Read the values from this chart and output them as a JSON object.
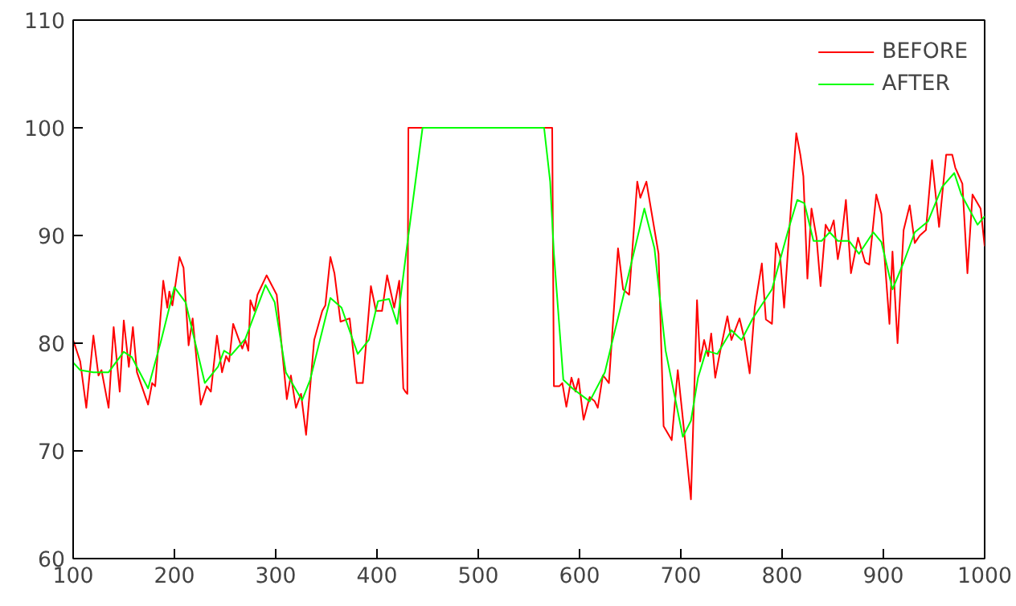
{
  "chart_data": {
    "type": "line",
    "xlim": [
      100,
      1000
    ],
    "ylim": [
      60,
      110
    ],
    "xticks": [
      100,
      200,
      300,
      400,
      500,
      600,
      700,
      800,
      900,
      1000
    ],
    "yticks": [
      60,
      70,
      80,
      90,
      100,
      110
    ],
    "grid": false,
    "legend": "top right",
    "marker": "none",
    "line_style": "solid",
    "series": [
      {
        "name": "BEFORE",
        "color": "#ff0000",
        "x": [
          100,
          107,
          113,
          120,
          125,
          128,
          135,
          140,
          146,
          150,
          155,
          159,
          163,
          174,
          178,
          181,
          189,
          193,
          195,
          198,
          205,
          209,
          214,
          218,
          226,
          232,
          236,
          242,
          247,
          251,
          254,
          258,
          263,
          267,
          270,
          273,
          275,
          279,
          282,
          291,
          301,
          311,
          315,
          320,
          325,
          330,
          338,
          346,
          349,
          354,
          358,
          364,
          373,
          380,
          386,
          394,
          399,
          405,
          410,
          417,
          422,
          426,
          428,
          430,
          431,
          573,
          574.7,
          580,
          583,
          587,
          592,
          596,
          599,
          604,
          610,
          615,
          618,
          623,
          625,
          629,
          638,
          643,
          649,
          657,
          660,
          666,
          678,
          683,
          691,
          697,
          702,
          710,
          716,
          719,
          723,
          727,
          730,
          734,
          739,
          746,
          750,
          758,
          763,
          768,
          773,
          780,
          784,
          790,
          794,
          798,
          802,
          807,
          814,
          818,
          821,
          825,
          829,
          834,
          838,
          843,
          847,
          851,
          855,
          859,
          863,
          868,
          875,
          882,
          886,
          893,
          898,
          906,
          909,
          914,
          920,
          926,
          931,
          936,
          942,
          948,
          955,
          962,
          968,
          971,
          978,
          983,
          988,
          996,
          1000
        ],
        "values": [
          80.3,
          78.3,
          74.0,
          80.7,
          77.0,
          77.5,
          74.0,
          81.5,
          75.5,
          82.1,
          77.8,
          81.5,
          77.3,
          74.3,
          76.3,
          76.0,
          85.8,
          83.3,
          84.8,
          83.5,
          88.0,
          87.0,
          79.8,
          82.3,
          74.3,
          76.0,
          75.5,
          80.7,
          77.3,
          78.8,
          78.3,
          81.8,
          80.5,
          79.5,
          80.3,
          79.3,
          84.0,
          83.0,
          84.5,
          86.3,
          84.5,
          74.8,
          77.0,
          74.0,
          75.3,
          71.5,
          80.3,
          83.0,
          83.5,
          88.0,
          86.5,
          82.0,
          82.3,
          76.3,
          76.3,
          85.3,
          83.0,
          83.0,
          86.3,
          83.3,
          85.8,
          75.8,
          75.5,
          75.3,
          100,
          100,
          76.0,
          76.0,
          76.3,
          74.1,
          76.8,
          75.5,
          76.7,
          72.9,
          75.0,
          74.6,
          74.0,
          77.0,
          76.8,
          76.3,
          88.8,
          85.0,
          84.5,
          95.0,
          93.5,
          95.0,
          88.3,
          72.3,
          71.0,
          77.5,
          73.0,
          65.5,
          84.0,
          78.3,
          80.3,
          78.8,
          80.9,
          76.8,
          79.3,
          82.5,
          80.3,
          82.3,
          80.3,
          77.2,
          83.3,
          87.4,
          82.2,
          81.8,
          89.3,
          88.1,
          83.3,
          90.3,
          99.5,
          97.5,
          95.5,
          86.0,
          92.5,
          89.8,
          85.3,
          91.0,
          90.3,
          91.4,
          87.8,
          89.9,
          93.3,
          86.5,
          89.8,
          87.5,
          87.3,
          93.8,
          92.0,
          81.8,
          88.5,
          80.0,
          90.5,
          92.8,
          89.3,
          90.0,
          90.5,
          97.0,
          90.8,
          97.5,
          97.5,
          96.3,
          94.8,
          86.5,
          93.8,
          92.5,
          89.0
        ]
      },
      {
        "name": "AFTER",
        "color": "#00ff00",
        "x": [
          100,
          107,
          120,
          135,
          150,
          158,
          174,
          187,
          200,
          211,
          230,
          243,
          249,
          256,
          270,
          290,
          299,
          310,
          326,
          334,
          354,
          365,
          381,
          392,
          401,
          412,
          420,
          431,
          438,
          445,
          565,
          571,
          574.7,
          584,
          593,
          610,
          625,
          634,
          647,
          664,
          674,
          685,
          702,
          710,
          717,
          725,
          736,
          750,
          760,
          771,
          790,
          807,
          815,
          822,
          831,
          839,
          847,
          855,
          866,
          876,
          890,
          898,
          909,
          920,
          931,
          944,
          958,
          970,
          977,
          993,
          1000
        ],
        "values": [
          78.2,
          77.5,
          77.3,
          77.3,
          79.2,
          78.7,
          75.8,
          80.3,
          85.2,
          83.8,
          76.3,
          77.8,
          79.3,
          78.9,
          80.4,
          85.4,
          83.8,
          77.3,
          74.7,
          76.6,
          84.2,
          83.3,
          79.0,
          80.3,
          83.9,
          84.1,
          81.8,
          90.0,
          95.0,
          100,
          100,
          95.0,
          88.3,
          76.6,
          75.8,
          74.6,
          77.3,
          80.8,
          85.8,
          92.5,
          88.8,
          79.3,
          71.3,
          72.8,
          76.8,
          79.3,
          79.0,
          81.2,
          80.3,
          82.3,
          85.0,
          90.8,
          93.3,
          93.0,
          89.5,
          89.5,
          90.3,
          89.5,
          89.5,
          88.3,
          90.3,
          89.4,
          85.0,
          87.5,
          90.3,
          91.3,
          94.5,
          95.8,
          93.8,
          91.0,
          91.8
        ]
      }
    ]
  }
}
